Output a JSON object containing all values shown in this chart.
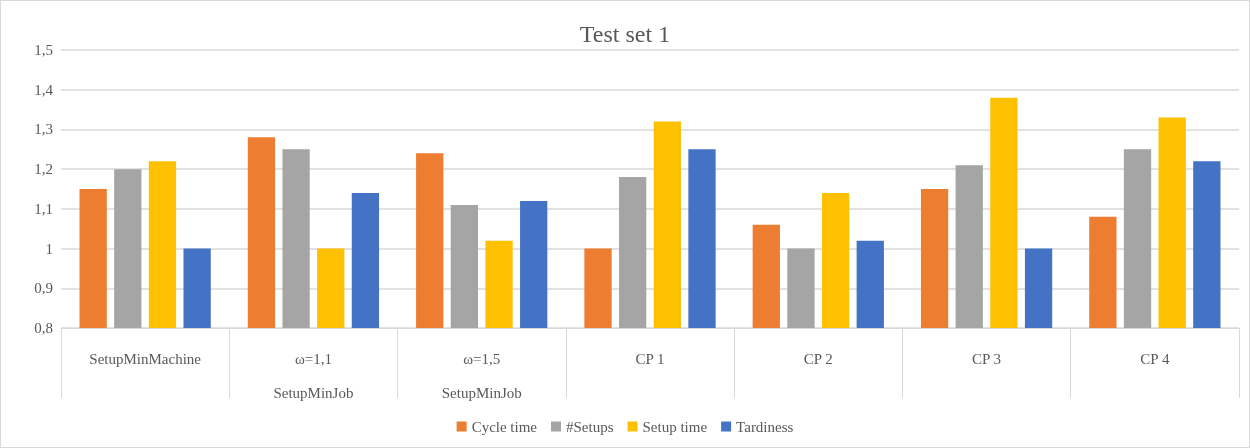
{
  "chart_data": {
    "type": "bar",
    "title": "Test set 1",
    "categories": [
      "SetupMinMachine",
      "ω=1,1\nSetupMinJob",
      "ω=1,5\nSetupMinJob",
      "CP 1",
      "CP 2",
      "CP 3",
      "CP 4"
    ],
    "series": [
      {
        "name": "Cycle time",
        "color": "#ed7d31",
        "values": [
          1.15,
          1.28,
          1.24,
          1.0,
          1.06,
          1.15,
          1.08
        ]
      },
      {
        "name": "#Setups",
        "color": "#a5a5a5",
        "values": [
          1.2,
          1.25,
          1.11,
          1.18,
          1.0,
          1.21,
          1.25
        ]
      },
      {
        "name": "Setup time",
        "color": "#ffc000",
        "values": [
          1.22,
          1.0,
          1.02,
          1.32,
          1.14,
          1.38,
          1.33
        ]
      },
      {
        "name": "Tardiness",
        "color": "#4472c4",
        "values": [
          1.0,
          1.14,
          1.12,
          1.25,
          1.02,
          1.0,
          1.22
        ]
      }
    ],
    "ylim": [
      0.8,
      1.5
    ],
    "yticks": [
      {
        "value": 0.8,
        "label": "0,8"
      },
      {
        "value": 0.9,
        "label": "0,9"
      },
      1,
      {
        "value": 1.1,
        "label": "1,1"
      },
      {
        "value": 1.2,
        "label": "1,2"
      },
      {
        "value": 1.3,
        "label": "1,3"
      },
      {
        "value": 1.4,
        "label": "1,4"
      },
      {
        "value": 1.5,
        "label": "1,5"
      }
    ],
    "grid": "y",
    "legend": "bottom"
  }
}
